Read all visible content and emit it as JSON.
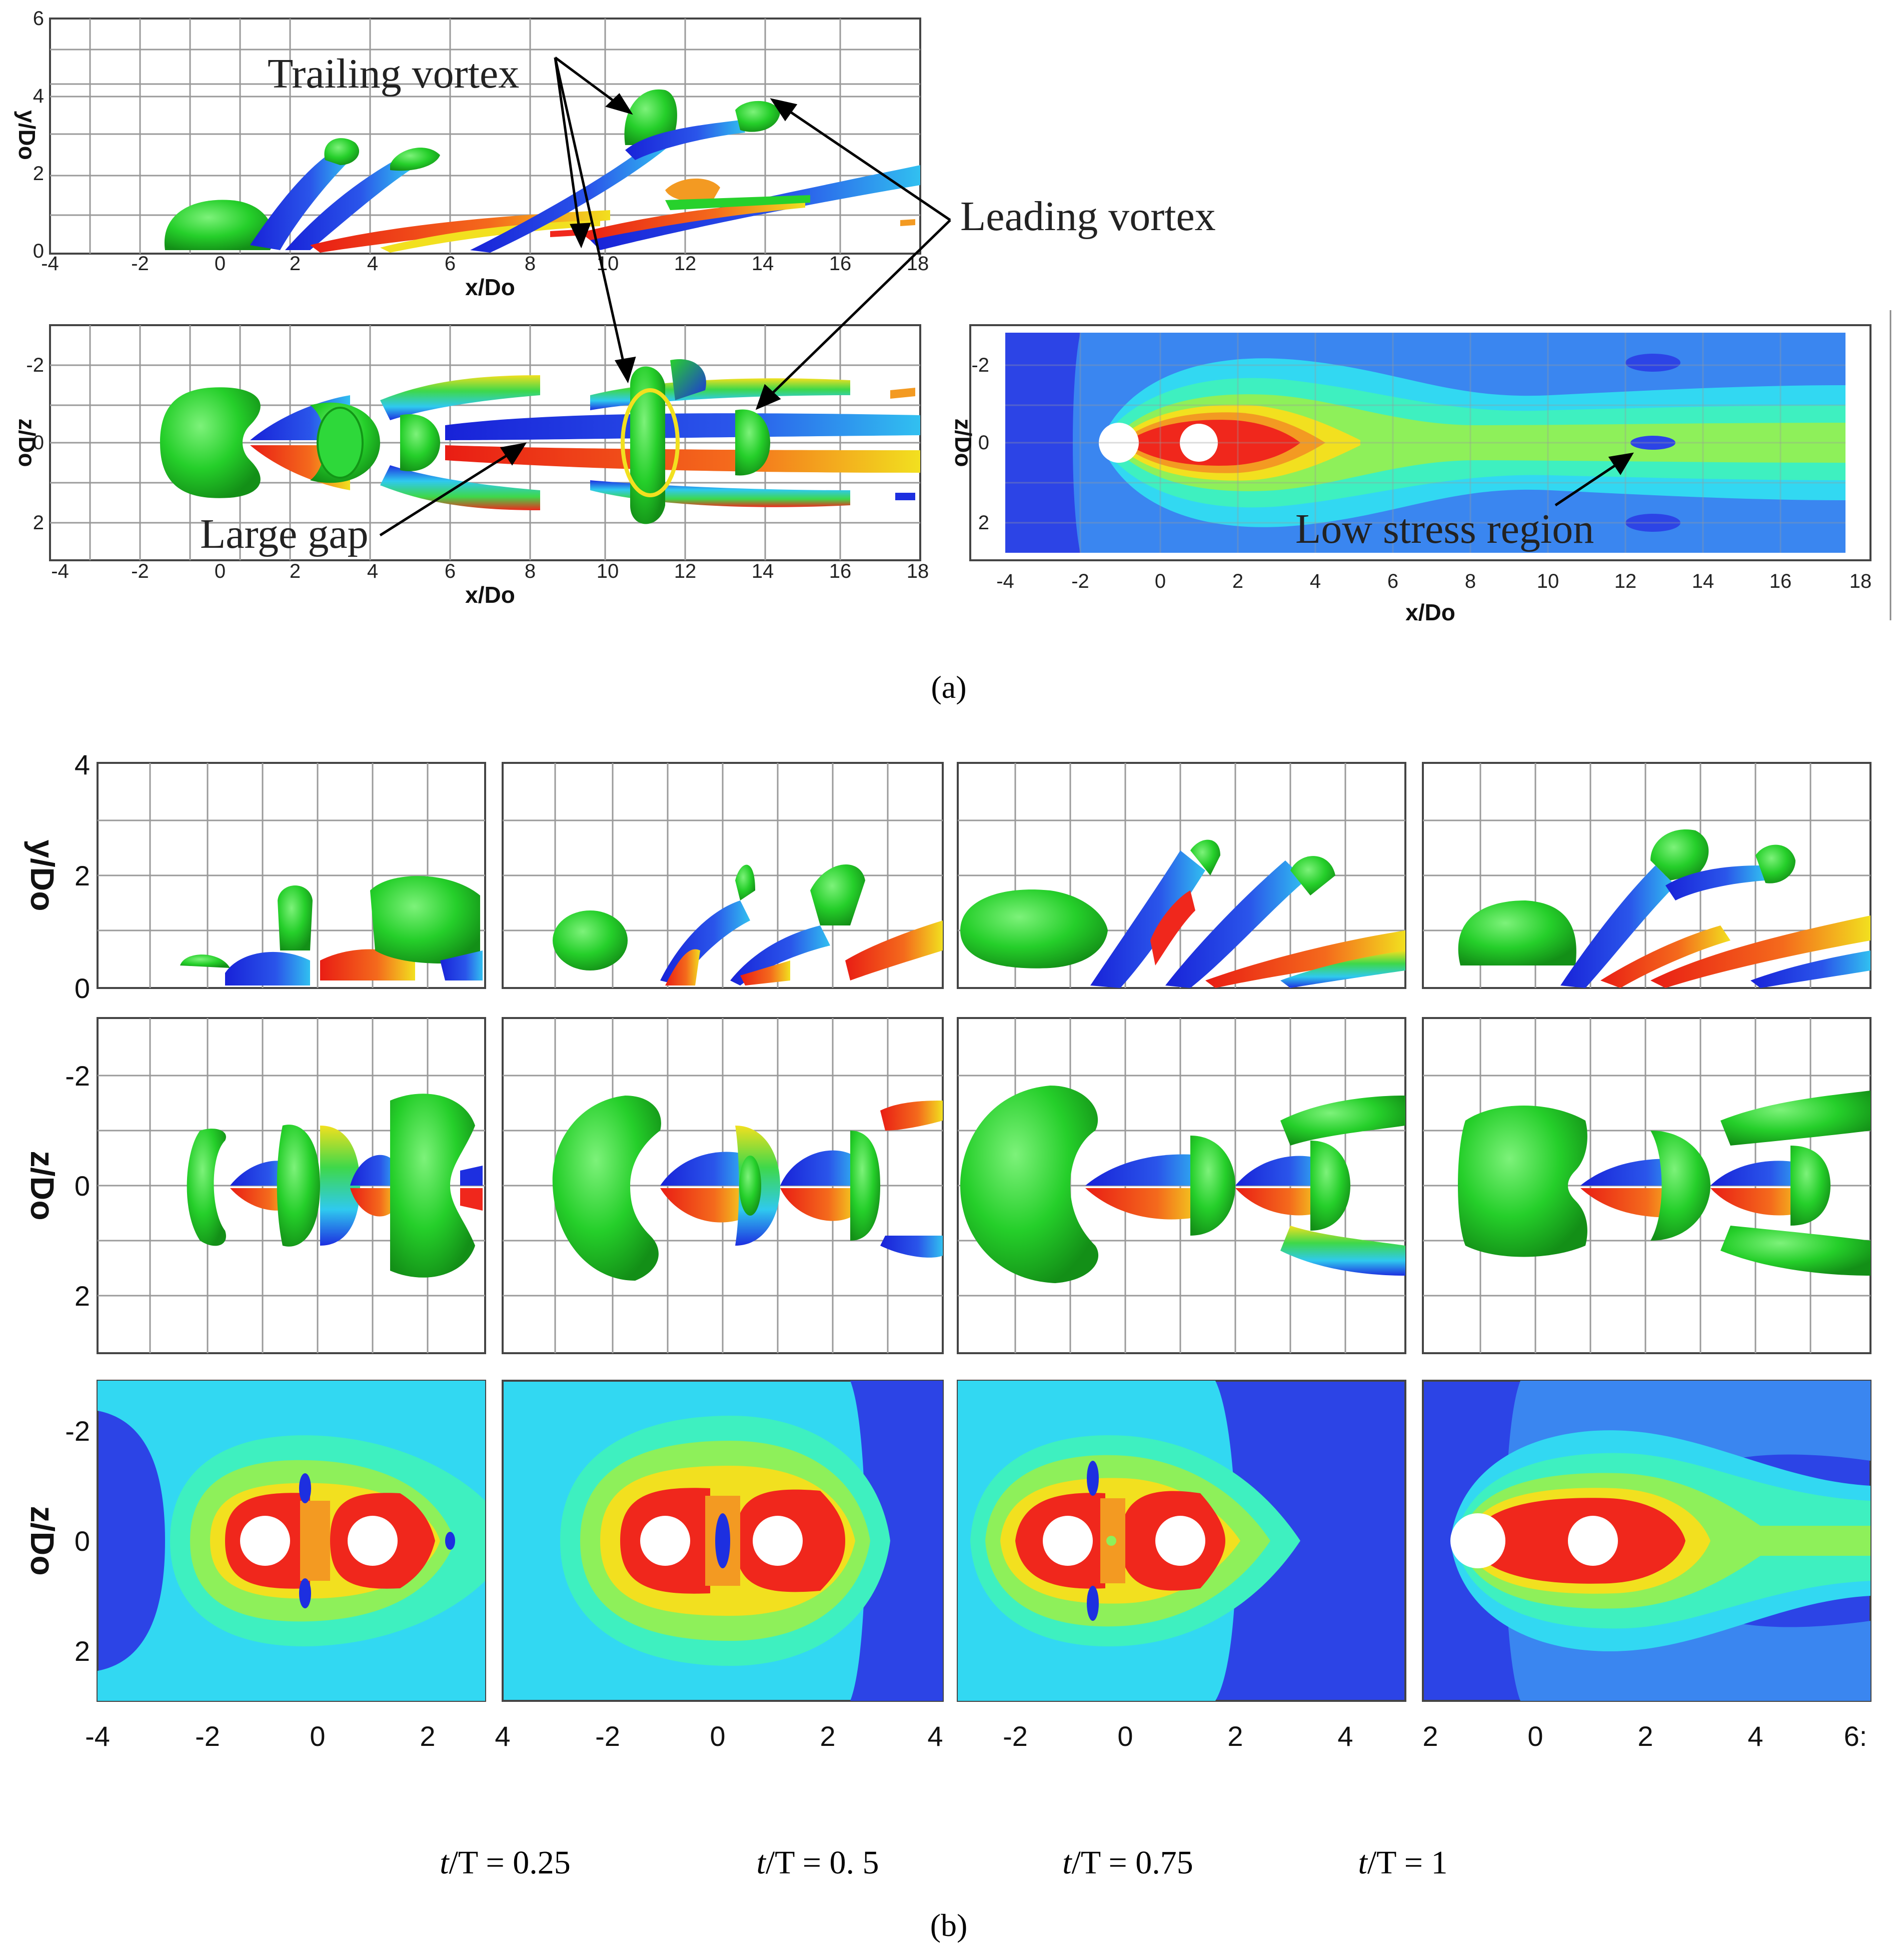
{
  "panels": {
    "a": "(a)",
    "b": "(b)"
  },
  "panel_a": {
    "side_view": {
      "ylabel": "y/Do",
      "xlabel": "x/Do",
      "yticks": [
        "0",
        "2",
        "4",
        "6"
      ],
      "xticks": [
        "-4",
        "-2",
        "0",
        "2",
        "4",
        "6",
        "8",
        "10",
        "12",
        "14",
        "16",
        "18"
      ]
    },
    "top_view": {
      "ylabel": "z/Do",
      "xlabel": "x/Do",
      "yticks": [
        "-2",
        "0",
        "2"
      ],
      "xticks": [
        "-4",
        "-2",
        "0",
        "2",
        "4",
        "6",
        "8",
        "10",
        "12",
        "14",
        "16",
        "18"
      ]
    },
    "stress_map": {
      "ylabel": "z/Do",
      "xlabel": "x/Do",
      "yticks": [
        "-2",
        "0",
        "2"
      ],
      "xticks": [
        "-4",
        "-2",
        "0",
        "2",
        "4",
        "6",
        "8",
        "10",
        "12",
        "14",
        "16",
        "18"
      ]
    },
    "annotations": {
      "trailing_vortex": "Trailing vortex",
      "leading_vortex": "Leading vortex",
      "large_gap": "Large gap",
      "low_stress": "Low stress region"
    }
  },
  "panel_b": {
    "ylabel_side": "y/Do",
    "ylabel_top": "z/Do",
    "ylabel_map": "z/Do",
    "yticks_side": [
      "0",
      "2",
      "4"
    ],
    "yticks_top": [
      "-2",
      "0",
      "2"
    ],
    "yticks_map": [
      "-2",
      "0",
      "2"
    ],
    "columns": [
      {
        "t": "t",
        "rest": "/T = 0.25",
        "xticks": [
          "-4",
          "-2",
          "0",
          "2"
        ]
      },
      {
        "t": "t",
        "rest": "/T = 0. 5",
        "xticks": [
          "4",
          "-2",
          "0",
          "2",
          "4"
        ]
      },
      {
        "t": "t",
        "rest": "/T = 0.75",
        "xticks": [
          "-2",
          "0",
          "2",
          "4"
        ]
      },
      {
        "t": "t",
        "rest": "/T = 1",
        "xticks": [
          "2",
          "0",
          "2",
          "4",
          "6:"
        ]
      }
    ]
  },
  "colors": {
    "green": "#27d12c",
    "blue": "#1d2fe0",
    "red": "#f0271c",
    "yellow": "#f2e51b",
    "cyan": "#2fd0f0",
    "deep_blue": "#2c44e6",
    "mid_blue": "#3a86f0",
    "light_cyan": "#32d8f2",
    "aqua_green": "#3ef0c0",
    "lime": "#8ef05a",
    "orange": "#f39a22"
  }
}
